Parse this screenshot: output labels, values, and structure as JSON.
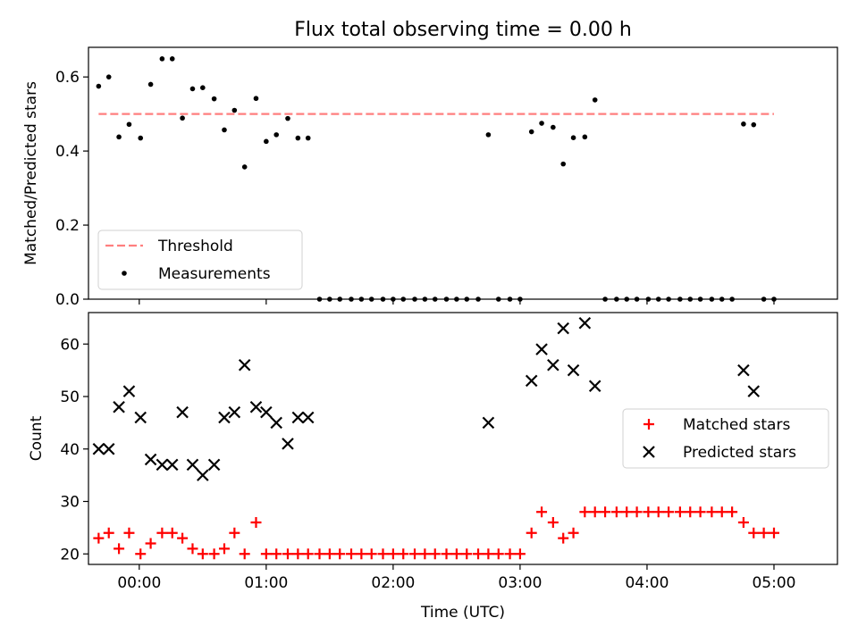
{
  "chart_data": [
    {
      "type": "scatter",
      "title": "Flux total observing time = 0.00 h",
      "xlabel": "",
      "ylabel": "Matched/Predicted stars",
      "xlim": [
        -0.4,
        5.5
      ],
      "ylim": [
        0,
        0.68
      ],
      "xticks": [
        0,
        1,
        2,
        3,
        4,
        5
      ],
      "xtick_labels": [
        "00:00",
        "01:00",
        "02:00",
        "03:00",
        "04:00",
        "05:00"
      ],
      "yticks": [
        0.0,
        0.2,
        0.4,
        0.6
      ],
      "ytick_labels": [
        "0.0",
        "0.2",
        "0.4",
        "0.6"
      ],
      "grid": false,
      "legend_position": "bottom-left",
      "threshold": {
        "name": "Threshold",
        "value": 0.5,
        "x_range": [
          -0.32,
          5.0
        ],
        "color": "#ff7f7f"
      },
      "series": [
        {
          "name": "Measurements",
          "color": "#000000",
          "x": [
            -0.32,
            -0.24,
            -0.16,
            -0.08,
            0.01,
            0.09,
            0.18,
            0.26,
            0.34,
            0.42,
            0.5,
            0.59,
            0.67,
            0.75,
            0.83,
            0.92,
            1.0,
            1.08,
            1.17,
            1.25,
            1.33,
            1.42,
            1.5,
            1.58,
            1.67,
            1.75,
            1.83,
            1.92,
            2.0,
            2.08,
            2.17,
            2.25,
            2.33,
            2.42,
            2.5,
            2.58,
            2.67,
            2.75,
            2.83,
            2.92,
            3.0,
            3.09,
            3.17,
            3.26,
            3.34,
            3.42,
            3.51,
            3.59,
            3.67,
            3.76,
            3.84,
            3.92,
            4.01,
            4.09,
            4.17,
            4.26,
            4.34,
            4.42,
            4.51,
            4.59,
            4.67,
            4.76,
            4.84,
            4.92,
            5.0
          ],
          "y": [
            0.575,
            0.6,
            0.438,
            0.472,
            0.435,
            0.58,
            0.649,
            0.649,
            0.489,
            0.568,
            0.571,
            0.541,
            0.457,
            0.51,
            0.357,
            0.542,
            0.426,
            0.444,
            0.488,
            0.435,
            0.435,
            0,
            0,
            0,
            0,
            0,
            0,
            0,
            0,
            0,
            0,
            0,
            0,
            0,
            0,
            0,
            0,
            0.444,
            0,
            0,
            0,
            0.452,
            0.475,
            0.464,
            0.365,
            0.436,
            0.438,
            0.538,
            0,
            0,
            0,
            0,
            0,
            0,
            0,
            0,
            0,
            0,
            0,
            0,
            0,
            0.473,
            0.471,
            0,
            0
          ]
        }
      ]
    },
    {
      "type": "scatter",
      "title": "",
      "xlabel": "Time (UTC)",
      "ylabel": "Count",
      "xlim": [
        -0.4,
        5.5
      ],
      "ylim": [
        18,
        66
      ],
      "xticks": [
        0,
        1,
        2,
        3,
        4,
        5
      ],
      "xtick_labels": [
        "00:00",
        "01:00",
        "02:00",
        "03:00",
        "04:00",
        "05:00"
      ],
      "yticks": [
        20,
        30,
        40,
        50,
        60
      ],
      "ytick_labels": [
        "20",
        "30",
        "40",
        "50",
        "60"
      ],
      "grid": false,
      "legend_position": "center-right",
      "series": [
        {
          "name": "Matched stars",
          "marker": "plus",
          "color": "#ff0000",
          "x": [
            -0.32,
            -0.24,
            -0.16,
            -0.08,
            0.01,
            0.09,
            0.18,
            0.26,
            0.34,
            0.42,
            0.5,
            0.59,
            0.67,
            0.75,
            0.83,
            0.92,
            1.0,
            1.08,
            1.17,
            1.25,
            1.33,
            1.42,
            1.5,
            1.58,
            1.67,
            1.75,
            1.83,
            1.92,
            2.0,
            2.08,
            2.17,
            2.25,
            2.33,
            2.42,
            2.5,
            2.58,
            2.67,
            2.75,
            2.83,
            2.92,
            3.0,
            3.09,
            3.17,
            3.26,
            3.34,
            3.42,
            3.51,
            3.59,
            3.67,
            3.76,
            3.84,
            3.92,
            4.01,
            4.09,
            4.17,
            4.26,
            4.34,
            4.42,
            4.51,
            4.59,
            4.67,
            4.76,
            4.84,
            4.92,
            5.0
          ],
          "y": [
            23,
            24,
            21,
            24,
            20,
            22,
            24,
            24,
            23,
            21,
            20,
            20,
            21,
            24,
            20,
            26,
            20,
            20,
            20,
            20,
            20,
            20,
            20,
            20,
            20,
            20,
            20,
            20,
            20,
            20,
            20,
            20,
            20,
            20,
            20,
            20,
            20,
            20,
            20,
            20,
            20,
            24,
            28,
            26,
            23,
            24,
            28,
            28,
            28,
            28,
            28,
            28,
            28,
            28,
            28,
            28,
            28,
            28,
            28,
            28,
            28,
            26,
            24,
            24,
            24
          ]
        },
        {
          "name": "Predicted stars",
          "marker": "x",
          "color": "#000000",
          "x": [
            -0.32,
            -0.24,
            -0.16,
            -0.08,
            0.01,
            0.09,
            0.18,
            0.26,
            0.34,
            0.42,
            0.5,
            0.59,
            0.67,
            0.75,
            0.83,
            0.92,
            1.0,
            1.08,
            1.17,
            1.25,
            1.33,
            2.75,
            3.09,
            3.17,
            3.26,
            3.34,
            3.42,
            3.51,
            3.59,
            4.76,
            4.84
          ],
          "y": [
            40,
            40,
            48,
            51,
            46,
            38,
            37,
            37,
            47,
            37,
            35,
            37,
            46,
            47,
            56,
            48,
            47,
            45,
            41,
            46,
            46,
            45,
            53,
            59,
            56,
            63,
            55,
            64,
            52,
            55,
            51
          ]
        }
      ]
    }
  ]
}
